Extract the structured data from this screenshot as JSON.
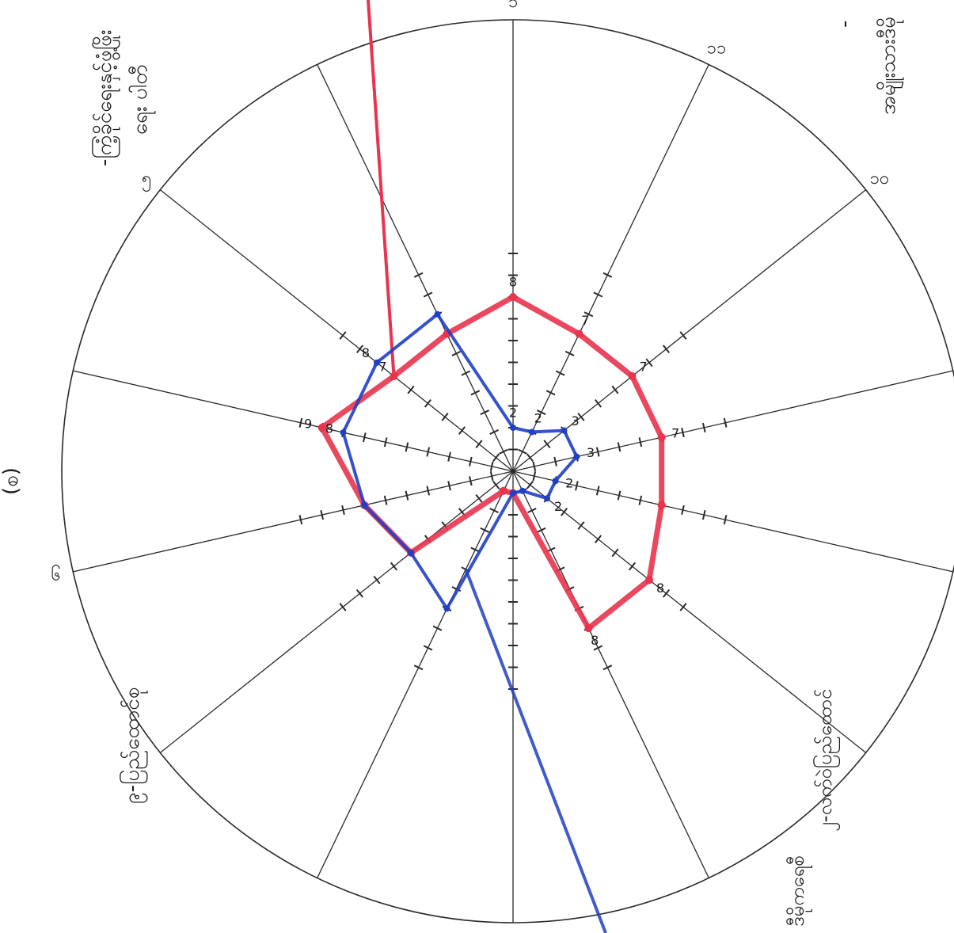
{
  "margin_labels": {
    "top_left": [
      "-ကြံ့ခိုင်ရေးနှင့်ဖွံ့ဖြိုး",
      "ရေး ပါတီ"
    ],
    "top_right": [
      "အမျိုးသားဒီမို",
      "-"
    ],
    "left": "(စ)",
    "bottom_left": "၉-ပြည်ထောင်စု",
    "bottom_right": [
      "၂-လက်ဝဲပြည်ထောင်",
      "ဒီမိုကရေစီ"
    ]
  },
  "spoke_end_labels": [
    "၁",
    "၁၁",
    "၁၀",
    "",
    "",
    "",
    "",
    "",
    "",
    "",
    "၆",
    "",
    "၅",
    ""
  ],
  "chart_data": {
    "type": "radar",
    "spoke_count": 14,
    "tick_count": 10,
    "series": [
      {
        "color": "#e8344d",
        "values": [
          8,
          7,
          7,
          7,
          7,
          8,
          8,
          1,
          1,
          6,
          7,
          9,
          7,
          7
        ],
        "point_labels": [
          "8",
          "7",
          "7",
          "7",
          "",
          "8",
          "8",
          "",
          "",
          "",
          "",
          "9",
          "7",
          ""
        ],
        "extra_line": "to top edge"
      },
      {
        "color": "#1f3fc4",
        "values": [
          2,
          2,
          3,
          3,
          2,
          2,
          1,
          1,
          7,
          6,
          7,
          8,
          8,
          8
        ],
        "point_labels": [
          "2",
          "2",
          "3",
          "3",
          "2",
          "2",
          "",
          "",
          "",
          "",
          "",
          "8",
          "8",
          ""
        ],
        "extra_line": "to bottom edge"
      }
    ]
  }
}
